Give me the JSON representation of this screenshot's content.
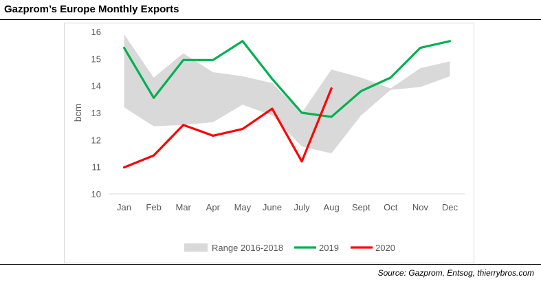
{
  "title": "Gazprom’s Europe Monthly Exports",
  "source": "Source: Gazprom, Entsog, thierrybros.com",
  "colors": {
    "range": "#d9d9d9",
    "y2019": "#00b050",
    "y2020": "#ff0000",
    "tick": "#595959"
  },
  "chart_data": {
    "type": "line",
    "ylabel": "bcm",
    "xlabel": "",
    "ylim": [
      10,
      16
    ],
    "yticks": [
      10,
      11,
      12,
      13,
      14,
      15,
      16
    ],
    "grid": false,
    "legend_position": "bottom",
    "categories": [
      "Jan",
      "Feb",
      "Mar",
      "Apr",
      "May",
      "June",
      "July",
      "Aug",
      "Sept",
      "Oct",
      "Nov",
      "Dec"
    ],
    "range": {
      "name": "Range 2016-2018",
      "low": [
        13.2,
        12.5,
        12.55,
        12.65,
        13.3,
        12.9,
        11.75,
        11.5,
        12.9,
        13.85,
        13.95,
        14.35
      ],
      "high": [
        15.9,
        14.3,
        15.2,
        14.5,
        14.35,
        14.1,
        13.0,
        14.6,
        14.3,
        13.9,
        14.65,
        14.9
      ]
    },
    "series": [
      {
        "name": "2019",
        "values": [
          15.4,
          13.55,
          14.95,
          14.95,
          15.65,
          14.25,
          13.0,
          12.85,
          13.8,
          14.3,
          15.4,
          15.65
        ]
      },
      {
        "name": "2020",
        "values": [
          10.98,
          11.42,
          12.55,
          12.15,
          12.4,
          13.15,
          11.2,
          13.9,
          null,
          null,
          null,
          null
        ]
      }
    ]
  }
}
